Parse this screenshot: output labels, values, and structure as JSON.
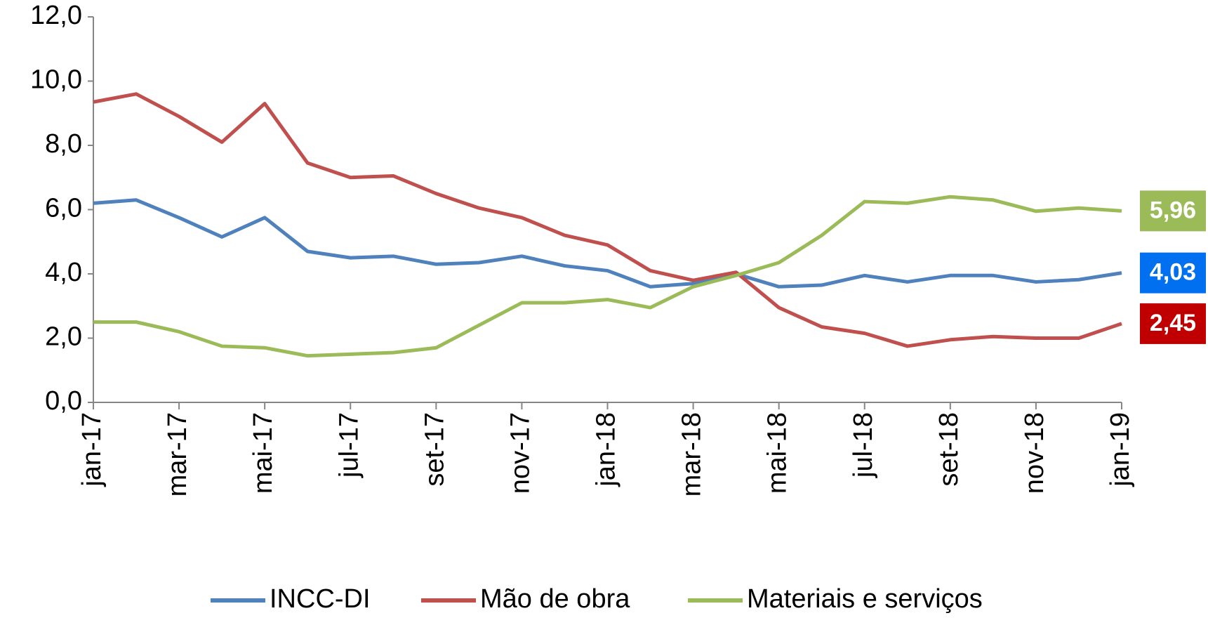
{
  "chart_data": {
    "type": "line",
    "categories": [
      "jan-17",
      null,
      "mar-17",
      null,
      "mai-17",
      null,
      "jul-17",
      null,
      "set-17",
      null,
      "nov-17",
      null,
      "jan-18",
      null,
      "mar-18",
      null,
      "mai-18",
      null,
      "jul-18",
      null,
      "set-18",
      null,
      "nov-18",
      null,
      "jan-19"
    ],
    "series": [
      {
        "name": "INCC-DI",
        "color": "#4f81bd",
        "label_color": "#0070f0",
        "values": [
          6.2,
          6.3,
          5.75,
          5.15,
          5.75,
          4.7,
          4.5,
          4.55,
          4.3,
          4.35,
          4.55,
          4.25,
          4.1,
          3.6,
          3.7,
          4.0,
          3.6,
          3.65,
          3.95,
          3.75,
          3.95,
          3.95,
          3.75,
          3.82,
          4.03
        ],
        "value_labels": [
          null,
          null,
          null,
          null,
          null,
          null,
          null,
          null,
          null,
          null,
          null,
          null,
          null,
          null,
          null,
          null,
          null,
          null,
          null,
          null,
          null,
          null,
          null,
          null,
          "4,03"
        ]
      },
      {
        "name": "Mão de obra",
        "color": "#c0504d",
        "label_color": "#c00000",
        "values": [
          9.35,
          9.6,
          8.9,
          8.1,
          9.3,
          7.45,
          7.0,
          7.05,
          6.5,
          6.05,
          5.75,
          5.2,
          4.9,
          4.1,
          3.8,
          4.05,
          2.95,
          2.35,
          2.15,
          1.75,
          1.95,
          2.05,
          2.0,
          2.0,
          2.45
        ],
        "value_labels": [
          null,
          null,
          null,
          null,
          null,
          null,
          null,
          null,
          null,
          null,
          null,
          null,
          null,
          null,
          null,
          null,
          null,
          null,
          null,
          null,
          null,
          null,
          null,
          null,
          "2,45"
        ]
      },
      {
        "name": "Materiais e serviços",
        "color": "#9bbb59",
        "label_color": "#9bbb59",
        "values": [
          2.5,
          2.5,
          2.2,
          1.75,
          1.7,
          1.45,
          1.5,
          1.55,
          1.7,
          2.4,
          3.1,
          3.1,
          3.2,
          2.95,
          3.6,
          3.95,
          4.35,
          5.2,
          6.25,
          6.2,
          6.4,
          6.3,
          5.95,
          6.05,
          5.96
        ],
        "value_labels": [
          null,
          null,
          null,
          null,
          null,
          null,
          null,
          null,
          null,
          null,
          null,
          null,
          null,
          null,
          null,
          null,
          null,
          null,
          null,
          null,
          null,
          null,
          null,
          null,
          "5,96"
        ]
      }
    ],
    "ylim": [
      0,
      12
    ],
    "yticks": [
      {
        "value": 0,
        "label": "0,0"
      },
      {
        "value": 2,
        "label": "2,0"
      },
      {
        "value": 4,
        "label": "4,0"
      },
      {
        "value": 6,
        "label": "6,0"
      },
      {
        "value": 8,
        "label": "8,0"
      },
      {
        "value": 10,
        "label": "10,0"
      },
      {
        "value": 12,
        "label": "12,0"
      }
    ],
    "grid": false,
    "legend": "bottom"
  }
}
